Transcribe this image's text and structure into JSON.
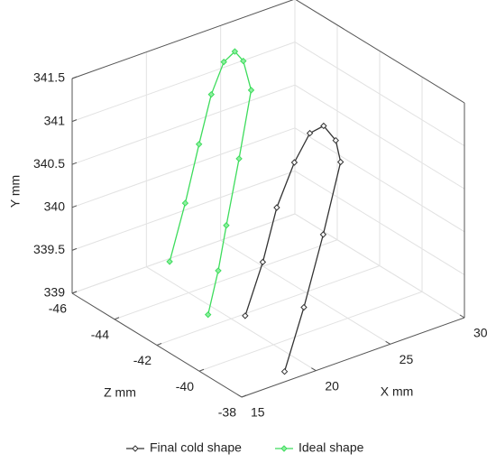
{
  "chart_data": {
    "type": "line3d",
    "xlabel": "X mm",
    "ylabel": "Y mm",
    "zlabel": "Z mm",
    "xlim": [
      15,
      30
    ],
    "xticks": [
      15,
      20,
      25,
      30
    ],
    "ylim": [
      339,
      341.5
    ],
    "yticks": [
      339,
      339.5,
      340,
      340.5,
      341,
      341.5
    ],
    "zlim": [
      -46,
      -38
    ],
    "zticks": [
      -46,
      -44,
      -42,
      -40,
      -38
    ],
    "grid": true,
    "legend": "bottom",
    "series": [
      {
        "name": "Final cold shape",
        "color": "#333333",
        "x": [
          20.8,
          21.7,
          22.5,
          23.4,
          24.3,
          24.8,
          24.9,
          24.8,
          23.2,
          20.9,
          18.6
        ],
        "y": [
          339,
          339.6,
          340.2,
          340.7,
          341.0,
          341.1,
          341.0,
          340.8,
          340.1,
          339.5,
          339
        ],
        "z": [
          -41.9,
          -41.7,
          -41.6,
          -41.4,
          -41.3,
          -41.0,
          -40.5,
          -40.2,
          -39.9,
          -39.2,
          -38.5
        ]
      },
      {
        "name": "Ideal shape",
        "color": "#3ddc5c",
        "x": [
          21.35,
          21.9,
          22.4,
          22.8,
          23.5,
          24.1,
          24.1,
          24.2,
          23.1,
          22.1,
          20.7,
          19.3
        ],
        "y": [
          339,
          339.7,
          340.4,
          341.0,
          341.35,
          341.45,
          341.4,
          341.1,
          340.4,
          339.7,
          339.35,
          339
        ],
        "z": [
          -45.85,
          -45.5,
          -45.2,
          -44.9,
          -44.8,
          -44.7,
          -44.3,
          -44.0,
          -43.8,
          -43.7,
          -43.1,
          -42.6
        ]
      }
    ]
  }
}
